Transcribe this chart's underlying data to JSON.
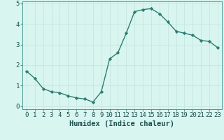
{
  "x": [
    0,
    1,
    2,
    3,
    4,
    5,
    6,
    7,
    8,
    9,
    10,
    11,
    12,
    13,
    14,
    15,
    16,
    17,
    18,
    19,
    20,
    21,
    22,
    23
  ],
  "y": [
    1.7,
    1.35,
    0.85,
    0.7,
    0.65,
    0.5,
    0.4,
    0.35,
    0.2,
    0.7,
    2.3,
    2.6,
    3.55,
    4.6,
    4.7,
    4.75,
    4.5,
    4.1,
    3.65,
    3.55,
    3.45,
    3.2,
    3.15,
    2.85
  ],
  "line_color": "#2e7d72",
  "marker": "D",
  "marker_size": 2.2,
  "bg_color": "#d9f5f0",
  "grid_color": "#c8e8e3",
  "xlabel": "Humidex (Indice chaleur)",
  "xlabel_fontsize": 7.5,
  "tick_fontsize": 6.5,
  "ylim": [
    -0.15,
    5.1
  ],
  "xlim": [
    -0.5,
    23.5
  ],
  "yticks": [
    0,
    1,
    2,
    3,
    4,
    5
  ],
  "xticks": [
    0,
    1,
    2,
    3,
    4,
    5,
    6,
    7,
    8,
    9,
    10,
    11,
    12,
    13,
    14,
    15,
    16,
    17,
    18,
    19,
    20,
    21,
    22,
    23
  ],
  "line_width": 1.0,
  "spine_color": "#4a9a90",
  "label_color": "#1a5050"
}
